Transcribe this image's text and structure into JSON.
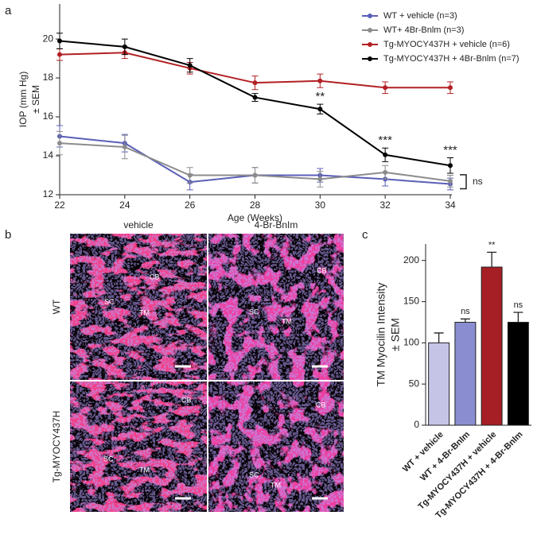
{
  "chart_data": [
    {
      "type": "line",
      "panel_label": "a",
      "xlabel": "Age (Weeks)",
      "ylabel": [
        "IOP (mm Hg)",
        "± SEM"
      ],
      "x": [
        22,
        24,
        26,
        28,
        30,
        32,
        34
      ],
      "xlim": [
        22,
        34
      ],
      "xticks": [
        22,
        24,
        26,
        28,
        30,
        32,
        34
      ],
      "ylim": [
        12,
        21.8
      ],
      "yticks": [
        12,
        14,
        16,
        18,
        20
      ],
      "series": [
        {
          "name": "WT + vehicle (n=3)",
          "color": "#5a5fb8",
          "values": [
            15.0,
            14.65,
            12.65,
            13.0,
            13.0,
            12.8,
            12.55
          ],
          "errors": [
            0.55,
            0.45,
            0.4,
            0.4,
            0.35,
            0.35,
            0.3
          ]
        },
        {
          "name": "WT+ 4Br-Bnlm (n=3)",
          "color": "#8c8c8c",
          "values": [
            14.65,
            14.45,
            13.0,
            13.0,
            12.8,
            13.15,
            12.7
          ],
          "errors": [
            0.6,
            0.6,
            0.4,
            0.4,
            0.4,
            0.35,
            0.3
          ]
        },
        {
          "name": "Tg-MYOCY437H + vehicle (n=6)",
          "color": "#b22024",
          "values": [
            19.2,
            19.3,
            18.5,
            17.75,
            17.85,
            17.5,
            17.5
          ],
          "errors": [
            0.3,
            0.3,
            0.3,
            0.35,
            0.35,
            0.3,
            0.3
          ]
        },
        {
          "name": "Tg-MYOCY437H + 4Br-Bnlm (n=7)",
          "color": "#000000",
          "values": [
            19.9,
            19.6,
            18.65,
            17.0,
            16.4,
            14.05,
            13.5
          ],
          "errors": [
            0.4,
            0.4,
            0.35,
            0.2,
            0.25,
            0.35,
            0.4
          ]
        }
      ],
      "annotations": [
        {
          "text": "**",
          "x": 30
        },
        {
          "text": "***",
          "x": 32
        },
        {
          "text": "***",
          "x": 34
        }
      ],
      "bracket_label": "ns"
    },
    {
      "type": "bar",
      "panel_label": "c",
      "ylabel": [
        "TM Myocilin Intensity",
        "± SEM"
      ],
      "categories": [
        "WT + vehicle",
        "WT + 4-Br-BnIm",
        "Tg-MYOCY437H + vehicle",
        "Tg-MYOCY437H + 4-Br-BnIm"
      ],
      "values": [
        100,
        125,
        192,
        125
      ],
      "errors": [
        12,
        4,
        18,
        12
      ],
      "colors": [
        "#c6c4e6",
        "#8a8ed0",
        "#a51f24",
        "#000000"
      ],
      "significance": [
        null,
        "ns",
        "**",
        "ns"
      ],
      "ylim": [
        0,
        220
      ],
      "yticks": [
        0,
        50,
        100,
        150,
        200
      ]
    }
  ],
  "micrographs": {
    "panel_label": "b",
    "columns": [
      "vehicle",
      "4-Br-BnIm"
    ],
    "rows": [
      "WT",
      "Tg-MYOCY437H"
    ],
    "labels": [
      [
        [
          "CB",
          "SC",
          "TM"
        ],
        [
          "CB",
          "SC",
          "TM"
        ]
      ],
      [
        [
          "CB",
          "SC",
          "TM"
        ],
        [
          "CB",
          "SC",
          "TM"
        ]
      ]
    ]
  }
}
